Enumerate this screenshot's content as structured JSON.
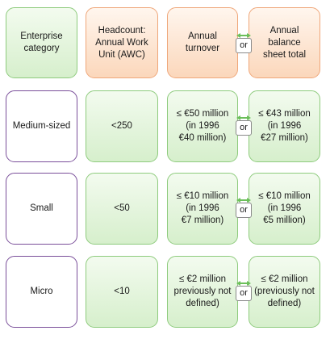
{
  "header": {
    "category": "Enterprise\ncategory",
    "headcount": "Headcount:\nAnnual Work\nUnit (AWC)",
    "turnover": "Annual\nturnover",
    "balance": "Annual\nbalance\nsheet total",
    "or": "or"
  },
  "rows": [
    {
      "category": "Medium-sized",
      "headcount": "<250",
      "turnover": "≤ €50 million\n(in 1996\n€40 million)",
      "balance": "≤ €43 million\n(in 1996\n€27 million)",
      "or": "or"
    },
    {
      "category": "Small",
      "headcount": "<50",
      "turnover": "≤ €10 million\n(in 1996\n€7 million)",
      "balance": "≤ €10 million\n(in 1996\n€5 million)",
      "or": "or"
    },
    {
      "category": "Micro",
      "headcount": "<10",
      "turnover": "≤ €2 million\npreviously not\ndefined)",
      "balance": "≤ €2 million\n(previously not\ndefined)",
      "or": "or"
    }
  ],
  "colors": {
    "green_border": "#8ecb7d",
    "orange_border": "#efa77a",
    "purple_border": "#7a4f9a",
    "arrow": "#6cbf5a"
  }
}
